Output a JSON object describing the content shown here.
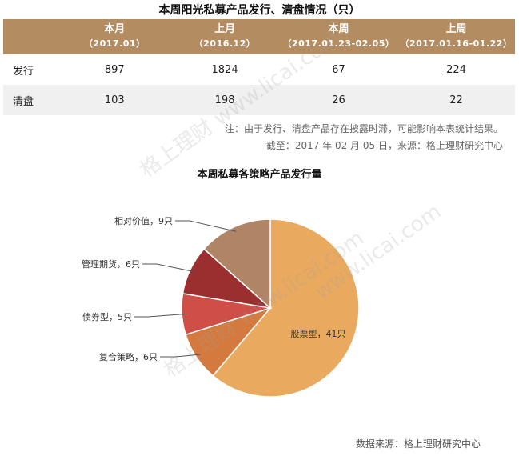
{
  "title": "本周阳光私募产品发行、清盘情况（只）",
  "table": {
    "columns": [
      {
        "label": "",
        "sub": ""
      },
      {
        "label": "本月",
        "sub": "（2017.01）"
      },
      {
        "label": "上月",
        "sub": "（2016.12）"
      },
      {
        "label": "本周",
        "sub": "（2017.01.23-02.05）"
      },
      {
        "label": "上周",
        "sub": "（2017.01.16-01.22）"
      }
    ],
    "rows": [
      {
        "label": "发行",
        "values": [
          "897",
          "1824",
          "67",
          "224"
        ]
      },
      {
        "label": "清盘",
        "values": [
          "103",
          "198",
          "26",
          "22"
        ]
      }
    ]
  },
  "note1": "注：由于发行、清盘产品存在披露时滞，可能影响本表统计结果。",
  "note2": "截至：2017 年 02 月 05 日，来源：格上理财研究中心",
  "chart_title": "本周私募各策略产品发行量",
  "chart_data": {
    "type": "pie",
    "title": "本周私募各策略产品发行量",
    "slices": [
      {
        "name": "股票型",
        "value": 41,
        "label": "股票型，41只",
        "color": "#e9aa60"
      },
      {
        "name": "复合策略",
        "value": 6,
        "label": "复合策略，6只",
        "color": "#d47a3f"
      },
      {
        "name": "债券型",
        "value": 5,
        "label": "债券型，5只",
        "color": "#cf4e47"
      },
      {
        "name": "管理期货",
        "value": 6,
        "label": "管理期货，6只",
        "color": "#9b2f30"
      },
      {
        "name": "相对价值",
        "value": 9,
        "label": "相对价值，9只",
        "color": "#b08565"
      }
    ]
  },
  "source": "数据来源：格上理财研究中心",
  "watermarks": [
    "格上理财 www.licai.com",
    "格上理财 www.licai.com",
    "www.licai.com"
  ]
}
